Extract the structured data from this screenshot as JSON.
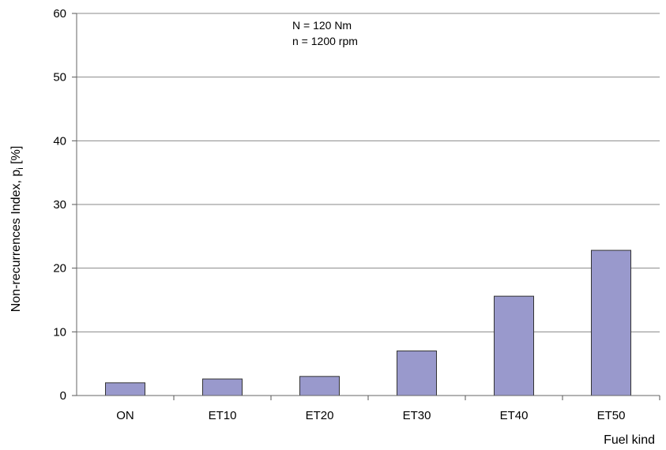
{
  "chart_data": {
    "type": "bar",
    "categories": [
      "ON",
      "ET10",
      "ET20",
      "ET30",
      "ET40",
      "ET50"
    ],
    "values": [
      2.0,
      2.6,
      3.0,
      7.0,
      15.6,
      22.8
    ],
    "xlabel": "Fuel kind",
    "ylabel_main": "Non-recurrences Index, p",
    "ylabel_sub": "i",
    "ylabel_unit": " [%]",
    "ylim": [
      0,
      60
    ],
    "yticks": [
      0,
      10,
      20,
      30,
      40,
      50,
      60
    ],
    "grid": true,
    "annotations": [
      "N = 120 Nm",
      "n = 1200 rpm"
    ],
    "bar_color": "#9999cc",
    "bar_edge_color": "#333333"
  }
}
